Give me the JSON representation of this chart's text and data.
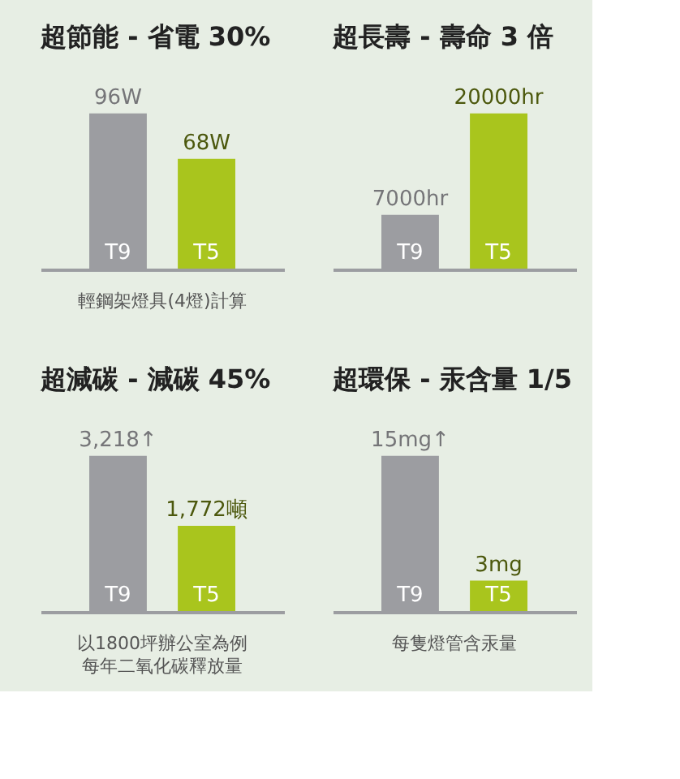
{
  "chart_data": [
    {
      "type": "bar",
      "title": "超節能 - 省電 30%",
      "categories": [
        "T9",
        "T5"
      ],
      "values": [
        96,
        68
      ],
      "colors": [
        "#9c9da1",
        "#a9c51d"
      ],
      "value_labels": [
        "96W",
        "68W"
      ],
      "annotations": [
        "輕鋼架燈具(4燈)計算"
      ]
    },
    {
      "type": "bar",
      "title": "超長壽 - 壽命 3 倍",
      "categories": [
        "T9",
        "T5"
      ],
      "values": [
        7000,
        20000
      ],
      "colors": [
        "#9c9da1",
        "#a9c51d"
      ],
      "value_labels": [
        "7000hr",
        "20000hr"
      ]
    },
    {
      "type": "bar",
      "title": "超減碳 - 減碳 45%",
      "categories": [
        "T9",
        "T5"
      ],
      "values": [
        3218,
        1772
      ],
      "colors": [
        "#9c9da1",
        "#a9c51d"
      ],
      "value_labels": [
        "3,218↑",
        "1,772噸"
      ],
      "annotations": [
        "以1800坪辦公室為例",
        "每年二氧化碳釋放量"
      ]
    },
    {
      "type": "bar",
      "title": "超環保 - 汞含量 1/5",
      "categories": [
        "T9",
        "T5"
      ],
      "values": [
        15,
        3
      ],
      "colors": [
        "#9c9da1",
        "#a9c51d"
      ],
      "value_labels": [
        "15mg↑",
        "3mg"
      ],
      "annotations": [
        "每隻燈管含汞量"
      ]
    }
  ]
}
